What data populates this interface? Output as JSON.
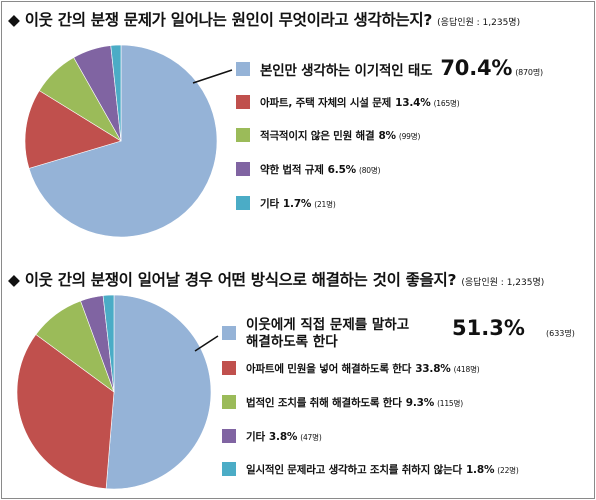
{
  "chart_data": [
    {
      "type": "pie",
      "title": "◆ 이웃 간의 분쟁 문제가 일어나는 원인이 무엇이라고 생각하는지?",
      "respondents": "(응답인원 : 1,235명)",
      "slices": [
        {
          "label": "본인만 생각하는 이기적인 태도",
          "value": 70.4,
          "pct_text": "70.4%",
          "count_text": "(870명)",
          "color": "#95b3d7"
        },
        {
          "label": "아파트, 주택 자체의 시설 문제",
          "value": 13.4,
          "pct_text": "13.4%",
          "count_text": "(165명)",
          "color": "#c0504d"
        },
        {
          "label": "적극적이지 않은 민원 해결",
          "value": 8.0,
          "pct_text": "8%",
          "count_text": "(99명)",
          "color": "#9bbb59"
        },
        {
          "label": "약한 법적 규제",
          "value": 6.5,
          "pct_text": "6.5%",
          "count_text": "(80명)",
          "color": "#8064a2"
        },
        {
          "label": "기타",
          "value": 1.7,
          "pct_text": "1.7%",
          "count_text": "(21명)",
          "color": "#4bacc6"
        }
      ]
    },
    {
      "type": "pie",
      "title": "◆ 이웃 간의 분쟁이 일어날 경우 어떤 방식으로 해결하는 것이 좋을지?",
      "respondents": "(응답인원 : 1,235명)",
      "slices": [
        {
          "label": "이웃에게 직접 문제를 말하고",
          "label2": "해결하도록 한다",
          "value": 51.3,
          "pct_text": "51.3%",
          "count_text": "(633명)",
          "color": "#95b3d7"
        },
        {
          "label": "아파트에 민원을 넣어 해결하도록 한다",
          "value": 33.8,
          "pct_text": "33.8%",
          "count_text": "(418명)",
          "color": "#c0504d"
        },
        {
          "label": "법적인 조치를 취해 해결하도록 한다",
          "value": 9.3,
          "pct_text": "9.3%",
          "count_text": "(115명)",
          "color": "#9bbb59"
        },
        {
          "label": "기타",
          "value": 3.8,
          "pct_text": "3.8%",
          "count_text": "(47명)",
          "color": "#8064a2"
        },
        {
          "label": "일시적인 문제라고 생각하고 조치를 취하지 않는다",
          "value": 1.8,
          "pct_text": "1.8%",
          "count_text": "(22명)",
          "color": "#4bacc6"
        }
      ]
    }
  ]
}
